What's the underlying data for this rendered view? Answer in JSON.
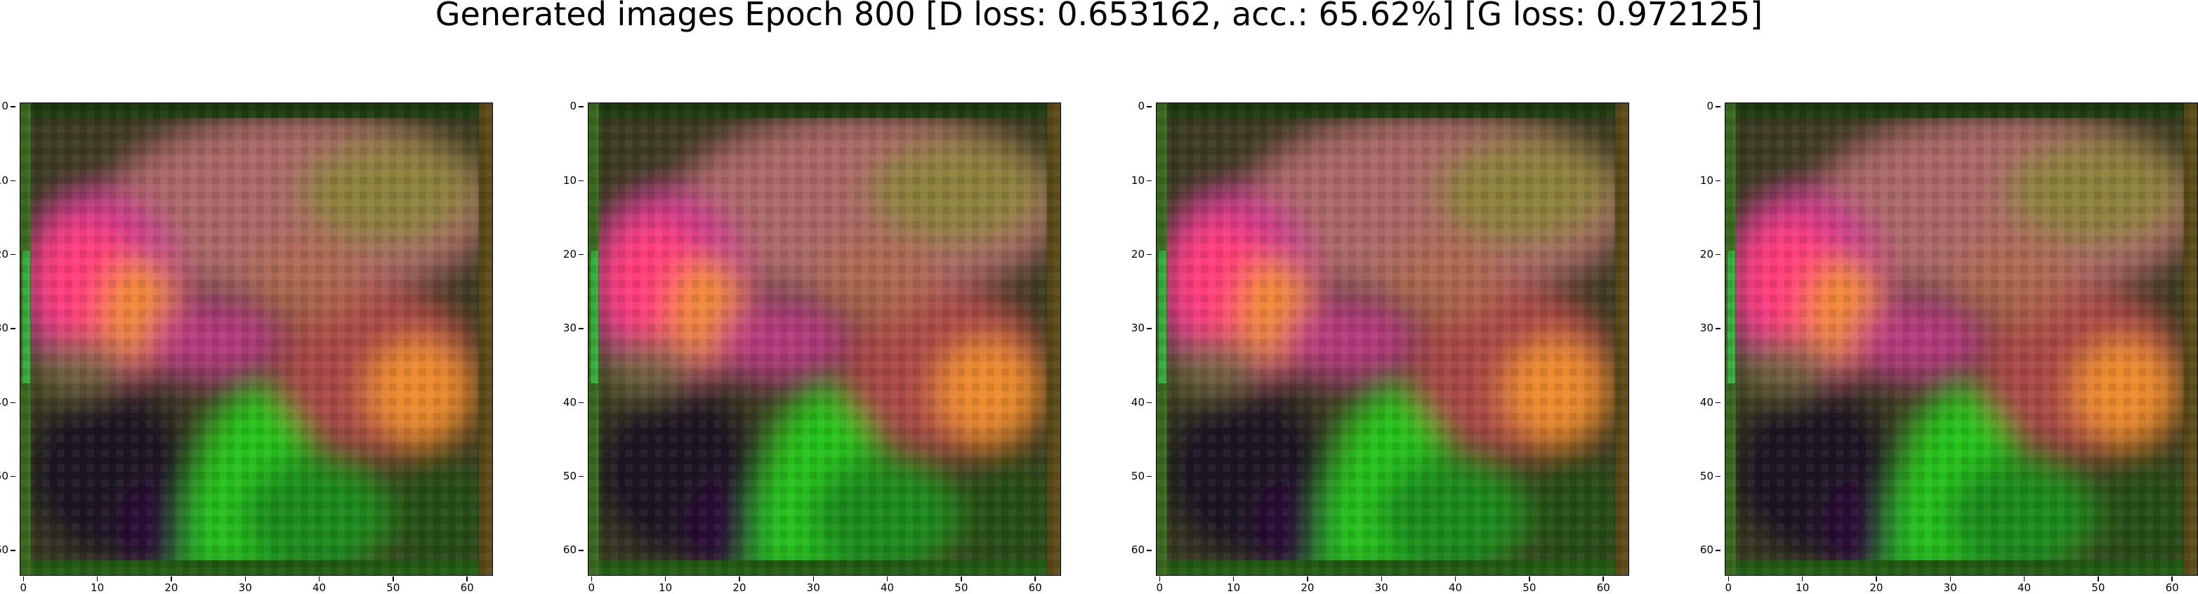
{
  "figure": {
    "title": "Generated images Epoch 800 [D loss: 0.653162, acc.: 65.62%] [G loss: 0.972125]"
  },
  "image_size": 64,
  "ticks": [
    0,
    10,
    20,
    30,
    40,
    50,
    60
  ],
  "panels": [
    {
      "name": "generated-image-1"
    },
    {
      "name": "generated-image-2"
    },
    {
      "name": "generated-image-3"
    },
    {
      "name": "generated-image-4"
    }
  ],
  "colors": {
    "dark_green": "#1f3a14",
    "bright_green": "#27c31b",
    "pink": "#ff3c7a",
    "magenta": "#c83b8e",
    "orange": "#f3922b",
    "mauve": "#b66f6f",
    "olive": "#808b2e",
    "dark": "#1b1420"
  }
}
